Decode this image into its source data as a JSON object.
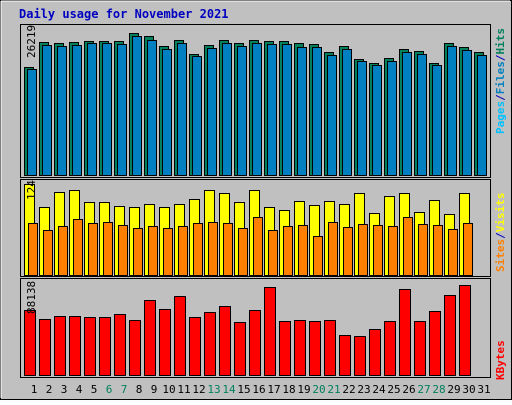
{
  "title": "Daily usage for November 2021",
  "colors": {
    "background": "#c0c0c0",
    "title": "#0000c0",
    "hits": "#00805c",
    "files": "#0080c0",
    "pages": "#00c0ff",
    "visits": "#ffff00",
    "sites": "#ff8000",
    "kbytes": "#ff0000",
    "weekend_label": "#00805c",
    "weekday_label": "#000000"
  },
  "chart_data": [
    {
      "type": "bar",
      "panel": "hits-files-pages",
      "y_tick_label": "26219",
      "ylim": [
        0,
        26219
      ],
      "axis_labels": [
        "Pages",
        "/",
        "Files",
        "/",
        "Hits"
      ],
      "categories": [
        "1",
        "2",
        "3",
        "4",
        "5",
        "6",
        "7",
        "8",
        "9",
        "10",
        "11",
        "12",
        "13",
        "14",
        "15",
        "16",
        "17",
        "18",
        "19",
        "20",
        "21",
        "22",
        "23",
        "24",
        "25",
        "26",
        "27",
        "28",
        "29",
        "30",
        "31"
      ],
      "series": [
        {
          "name": "Hits",
          "values": [
            19200,
            23600,
            23400,
            23600,
            23800,
            23800,
            23800,
            25200,
            24600,
            22900,
            23900,
            21500,
            23100,
            23900,
            23400,
            23900,
            23700,
            23800,
            23300,
            23200,
            21800,
            22900,
            20600,
            19900,
            20700,
            22300,
            22000,
            19800,
            23300,
            22700,
            21800
          ]
        },
        {
          "name": "Files",
          "values": [
            18800,
            23100,
            22900,
            23100,
            23300,
            23300,
            23200,
            24600,
            24000,
            22300,
            23300,
            21000,
            22500,
            23300,
            22800,
            23300,
            23200,
            23200,
            22700,
            22700,
            21300,
            22300,
            20200,
            19500,
            20200,
            21800,
            21400,
            19500,
            22800,
            22100,
            21300
          ]
        },
        {
          "name": "Pages",
          "values": [
            0,
            0,
            0,
            0,
            0,
            0,
            0,
            0,
            0,
            0,
            0,
            0,
            0,
            0,
            0,
            0,
            0,
            0,
            0,
            0,
            0,
            0,
            0,
            0,
            0,
            0,
            0,
            0,
            0,
            0,
            0
          ]
        }
      ]
    },
    {
      "type": "bar",
      "panel": "sites-visits",
      "y_tick_label": "124",
      "ylim": [
        0,
        124
      ],
      "axis_labels": [
        "Sites",
        "/",
        "Visits"
      ],
      "categories": [
        "1",
        "2",
        "3",
        "4",
        "5",
        "6",
        "7",
        "8",
        "9",
        "10",
        "11",
        "12",
        "13",
        "14",
        "15",
        "16",
        "17",
        "18",
        "19",
        "20",
        "21",
        "22",
        "23",
        "24",
        "25",
        "26",
        "27",
        "28",
        "29",
        "30",
        "31"
      ],
      "series": [
        {
          "name": "Visits",
          "values": [
            122,
            91,
            112,
            114,
            98,
            98,
            93,
            91,
            96,
            91,
            96,
            102,
            115,
            110,
            98,
            114,
            92,
            88,
            100,
            94,
            100,
            96,
            111,
            84,
            106,
            110,
            85,
            101,
            82,
            110,
            0
          ]
        },
        {
          "name": "Sites",
          "values": [
            70,
            60,
            66,
            76,
            70,
            72,
            68,
            63,
            66,
            64,
            66,
            70,
            71,
            70,
            64,
            78,
            60,
            66,
            67,
            52,
            72,
            65,
            69,
            68,
            66,
            78,
            69,
            68,
            62,
            70,
            0
          ]
        }
      ]
    },
    {
      "type": "bar",
      "panel": "kbytes",
      "y_tick_label": "88138",
      "ylim": [
        0,
        88138
      ],
      "axis_labels": [
        "KBytes"
      ],
      "categories": [
        "1",
        "2",
        "3",
        "4",
        "5",
        "6",
        "7",
        "8",
        "9",
        "10",
        "11",
        "12",
        "13",
        "14",
        "15",
        "16",
        "17",
        "18",
        "19",
        "20",
        "21",
        "22",
        "23",
        "24",
        "25",
        "26",
        "27",
        "28",
        "29",
        "30",
        "31"
      ],
      "series": [
        {
          "name": "KBytes",
          "values": [
            62000,
            54000,
            57000,
            57000,
            56000,
            56000,
            58000,
            53000,
            72000,
            63000,
            76000,
            56000,
            60000,
            66000,
            51000,
            62000,
            84000,
            52000,
            53000,
            52000,
            53000,
            38000,
            37000,
            44000,
            52000,
            82000,
            52000,
            61000,
            77000,
            86000,
            0
          ]
        }
      ]
    }
  ],
  "days": [
    {
      "label": "1",
      "weekend": false
    },
    {
      "label": "2",
      "weekend": false
    },
    {
      "label": "3",
      "weekend": false
    },
    {
      "label": "4",
      "weekend": false
    },
    {
      "label": "5",
      "weekend": false
    },
    {
      "label": "6",
      "weekend": true
    },
    {
      "label": "7",
      "weekend": true
    },
    {
      "label": "8",
      "weekend": false
    },
    {
      "label": "9",
      "weekend": false
    },
    {
      "label": "10",
      "weekend": false
    },
    {
      "label": "11",
      "weekend": false
    },
    {
      "label": "12",
      "weekend": false
    },
    {
      "label": "13",
      "weekend": true
    },
    {
      "label": "14",
      "weekend": true
    },
    {
      "label": "15",
      "weekend": false
    },
    {
      "label": "16",
      "weekend": false
    },
    {
      "label": "17",
      "weekend": false
    },
    {
      "label": "18",
      "weekend": false
    },
    {
      "label": "19",
      "weekend": false
    },
    {
      "label": "20",
      "weekend": true
    },
    {
      "label": "21",
      "weekend": true
    },
    {
      "label": "22",
      "weekend": false
    },
    {
      "label": "23",
      "weekend": false
    },
    {
      "label": "24",
      "weekend": false
    },
    {
      "label": "25",
      "weekend": false
    },
    {
      "label": "26",
      "weekend": false
    },
    {
      "label": "27",
      "weekend": true
    },
    {
      "label": "28",
      "weekend": true
    },
    {
      "label": "29",
      "weekend": false
    },
    {
      "label": "30",
      "weekend": false
    },
    {
      "label": "31",
      "weekend": false
    }
  ]
}
